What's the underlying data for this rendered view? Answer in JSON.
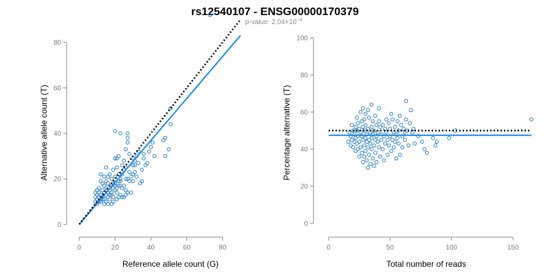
{
  "header": {
    "title": "rs12540107 - ENSG00000170379",
    "subtitle_prefix": "p-value: 2.04×10",
    "subtitle_exponent": "−4"
  },
  "colors": {
    "points": "#2b7fc3",
    "fit_line": "#1e88e5",
    "reference_line": "#000000"
  },
  "chart_data": [
    {
      "type": "scatter",
      "xlabel": "Reference allele count (G)",
      "ylabel": "Alternative allele count (T)",
      "xlim": [
        -2,
        92
      ],
      "ylim": [
        -2,
        82
      ],
      "xticks": [
        0,
        20,
        40,
        60,
        80
      ],
      "yticks": [
        0,
        20,
        40,
        60,
        80
      ],
      "grid": false,
      "reference_line": {
        "style": "dotted",
        "from": [
          0,
          0
        ],
        "to": [
          90,
          90
        ]
      },
      "fit_line": {
        "style": "solid",
        "from": [
          0,
          0
        ],
        "to": [
          90,
          83
        ]
      },
      "points": [
        [
          73,
          92
        ],
        [
          51,
          51
        ],
        [
          51,
          44
        ],
        [
          50,
          33
        ],
        [
          48,
          30
        ],
        [
          47,
          37
        ],
        [
          48,
          38
        ],
        [
          42,
          30
        ],
        [
          41,
          36
        ],
        [
          40,
          34
        ],
        [
          38,
          27
        ],
        [
          36,
          29
        ],
        [
          35,
          24
        ],
        [
          35,
          19
        ],
        [
          34,
          18
        ],
        [
          33,
          32
        ],
        [
          32,
          30
        ],
        [
          31,
          28
        ],
        [
          31,
          23
        ],
        [
          30,
          29
        ],
        [
          30,
          26
        ],
        [
          29,
          21
        ],
        [
          28,
          23
        ],
        [
          28,
          31
        ],
        [
          27,
          36
        ],
        [
          27,
          38
        ],
        [
          27,
          40
        ],
        [
          26,
          33
        ],
        [
          26,
          20
        ],
        [
          26,
          15
        ],
        [
          25,
          28
        ],
        [
          25,
          24
        ],
        [
          24,
          26
        ],
        [
          24,
          16
        ],
        [
          23,
          40
        ],
        [
          23,
          13
        ],
        [
          23,
          19
        ],
        [
          22,
          30
        ],
        [
          22,
          22
        ],
        [
          22,
          17
        ],
        [
          21,
          29
        ],
        [
          21,
          25
        ],
        [
          21,
          14
        ],
        [
          21,
          11
        ],
        [
          20,
          29
        ],
        [
          20,
          41
        ],
        [
          20,
          21
        ],
        [
          20,
          18
        ],
        [
          19,
          12
        ],
        [
          19,
          16
        ],
        [
          19,
          24
        ],
        [
          18,
          17
        ],
        [
          18,
          13
        ],
        [
          18,
          20
        ],
        [
          17,
          11
        ],
        [
          17,
          15
        ],
        [
          17,
          22
        ],
        [
          16,
          12
        ],
        [
          16,
          18
        ],
        [
          16,
          14
        ],
        [
          15,
          13
        ],
        [
          15,
          25
        ],
        [
          15,
          10
        ],
        [
          15,
          16
        ],
        [
          14,
          11
        ],
        [
          14,
          14
        ],
        [
          14,
          21
        ],
        [
          14,
          17
        ],
        [
          13,
          12
        ],
        [
          13,
          15
        ],
        [
          13,
          18
        ],
        [
          12,
          10
        ],
        [
          12,
          13
        ],
        [
          12,
          11
        ],
        [
          12,
          19
        ],
        [
          12,
          22
        ],
        [
          11,
          12
        ],
        [
          11,
          14
        ],
        [
          11,
          16
        ],
        [
          11,
          10
        ],
        [
          10,
          11
        ],
        [
          10,
          13
        ],
        [
          10,
          9
        ],
        [
          10,
          15
        ],
        [
          9,
          10
        ],
        [
          9,
          12
        ],
        [
          9,
          14
        ],
        [
          18,
          9
        ],
        [
          19,
          10
        ],
        [
          22,
          12
        ],
        [
          24,
          12
        ],
        [
          25,
          12
        ],
        [
          26,
          13
        ],
        [
          27,
          14
        ],
        [
          29,
          14
        ],
        [
          30,
          19
        ],
        [
          32,
          21
        ],
        [
          20,
          15
        ],
        [
          13,
          11
        ],
        [
          14,
          9
        ],
        [
          16,
          9
        ],
        [
          17,
          13
        ],
        [
          21,
          16
        ],
        [
          23,
          20
        ],
        [
          24,
          22
        ],
        [
          25,
          17
        ],
        [
          26,
          25
        ],
        [
          27,
          20
        ],
        [
          28,
          19
        ],
        [
          30,
          22
        ],
        [
          31,
          26
        ],
        [
          33,
          27
        ],
        [
          36,
          31
        ],
        [
          37,
          26
        ],
        [
          39,
          32
        ],
        [
          15,
          19
        ],
        [
          16,
          21
        ],
        [
          18,
          14
        ],
        [
          19,
          18
        ],
        [
          20,
          17
        ],
        [
          22,
          19
        ],
        [
          23,
          17
        ]
      ]
    },
    {
      "type": "scatter",
      "xlabel": "Total number of reads",
      "ylabel": "Percentage alternative (T)",
      "xlim": [
        -5,
        165
      ],
      "ylim": [
        -3,
        100
      ],
      "xticks": [
        0,
        50,
        100,
        150
      ],
      "yticks": [
        0,
        20,
        40,
        60,
        80,
        100
      ],
      "grid": false,
      "reference_line": {
        "style": "dotted",
        "y": 50
      },
      "fit_line": {
        "style": "solid",
        "y": 47.5
      },
      "points": [
        [
          165,
          56
        ],
        [
          103,
          50
        ],
        [
          98,
          46
        ],
        [
          88,
          44
        ],
        [
          87,
          42
        ],
        [
          85,
          46
        ],
        [
          80,
          38
        ],
        [
          78,
          40
        ],
        [
          76,
          44
        ],
        [
          73,
          47
        ],
        [
          70,
          43
        ],
        [
          69,
          51
        ],
        [
          68,
          49
        ],
        [
          67,
          61
        ],
        [
          66,
          54
        ],
        [
          65,
          42
        ],
        [
          64,
          50
        ],
        [
          63,
          66
        ],
        [
          63,
          56
        ],
        [
          62,
          45
        ],
        [
          62,
          49
        ],
        [
          61,
          51
        ],
        [
          60,
          41
        ],
        [
          60,
          47
        ],
        [
          59,
          53
        ],
        [
          58,
          58
        ],
        [
          58,
          37
        ],
        [
          57,
          43
        ],
        [
          57,
          50
        ],
        [
          56,
          46
        ],
        [
          56,
          55
        ],
        [
          55,
          35
        ],
        [
          55,
          48
        ],
        [
          54,
          52
        ],
        [
          54,
          44
        ],
        [
          53,
          41
        ],
        [
          53,
          49
        ],
        [
          52,
          56
        ],
        [
          52,
          45
        ],
        [
          51,
          59
        ],
        [
          51,
          39
        ],
        [
          50,
          47
        ],
        [
          50,
          51
        ],
        [
          49,
          42
        ],
        [
          49,
          54
        ],
        [
          48,
          37
        ],
        [
          48,
          45
        ],
        [
          47,
          49
        ],
        [
          47,
          56
        ],
        [
          46,
          43
        ],
        [
          46,
          51
        ],
        [
          45,
          34
        ],
        [
          45,
          47
        ],
        [
          44,
          40
        ],
        [
          44,
          53
        ],
        [
          43,
          45
        ],
        [
          43,
          48
        ],
        [
          42,
          36
        ],
        [
          42,
          52
        ],
        [
          41,
          41
        ],
        [
          41,
          55
        ],
        [
          41,
          62
        ],
        [
          40,
          44
        ],
        [
          40,
          49
        ],
        [
          39,
          33
        ],
        [
          39,
          47
        ],
        [
          39,
          53
        ],
        [
          38,
          38
        ],
        [
          38,
          45
        ],
        [
          38,
          58
        ],
        [
          37,
          42
        ],
        [
          37,
          50
        ],
        [
          37,
          31
        ],
        [
          36,
          35
        ],
        [
          36,
          48
        ],
        [
          36,
          55
        ],
        [
          35,
          40
        ],
        [
          35,
          46
        ],
        [
          35,
          52
        ],
        [
          35,
          64
        ],
        [
          34,
          32
        ],
        [
          34,
          43
        ],
        [
          34,
          49
        ],
        [
          33,
          37
        ],
        [
          33,
          45
        ],
        [
          33,
          57
        ],
        [
          32,
          30
        ],
        [
          32,
          41
        ],
        [
          32,
          51
        ],
        [
          32,
          61
        ],
        [
          31,
          34
        ],
        [
          31,
          44
        ],
        [
          31,
          48
        ],
        [
          30,
          39
        ],
        [
          30,
          46
        ],
        [
          30,
          53
        ],
        [
          30,
          59
        ],
        [
          29,
          36
        ],
        [
          29,
          42
        ],
        [
          29,
          50
        ],
        [
          29,
          56
        ],
        [
          28,
          33
        ],
        [
          28,
          45
        ],
        [
          28,
          52
        ],
        [
          28,
          62
        ],
        [
          27,
          38
        ],
        [
          27,
          47
        ],
        [
          27,
          55
        ],
        [
          26,
          41
        ],
        [
          26,
          49
        ],
        [
          26,
          60
        ],
        [
          25,
          36
        ],
        [
          25,
          44
        ],
        [
          25,
          51
        ],
        [
          24,
          40
        ],
        [
          24,
          47
        ],
        [
          24,
          54
        ],
        [
          23,
          43
        ],
        [
          23,
          50
        ],
        [
          23,
          57
        ],
        [
          22,
          39
        ],
        [
          22,
          46
        ],
        [
          22,
          52
        ],
        [
          21,
          44
        ],
        [
          21,
          48
        ],
        [
          20,
          41
        ],
        [
          20,
          50
        ],
        [
          19,
          45
        ],
        [
          19,
          53
        ],
        [
          18,
          47
        ],
        [
          18,
          42
        ],
        [
          17,
          49
        ],
        [
          16,
          44
        ]
      ]
    }
  ]
}
